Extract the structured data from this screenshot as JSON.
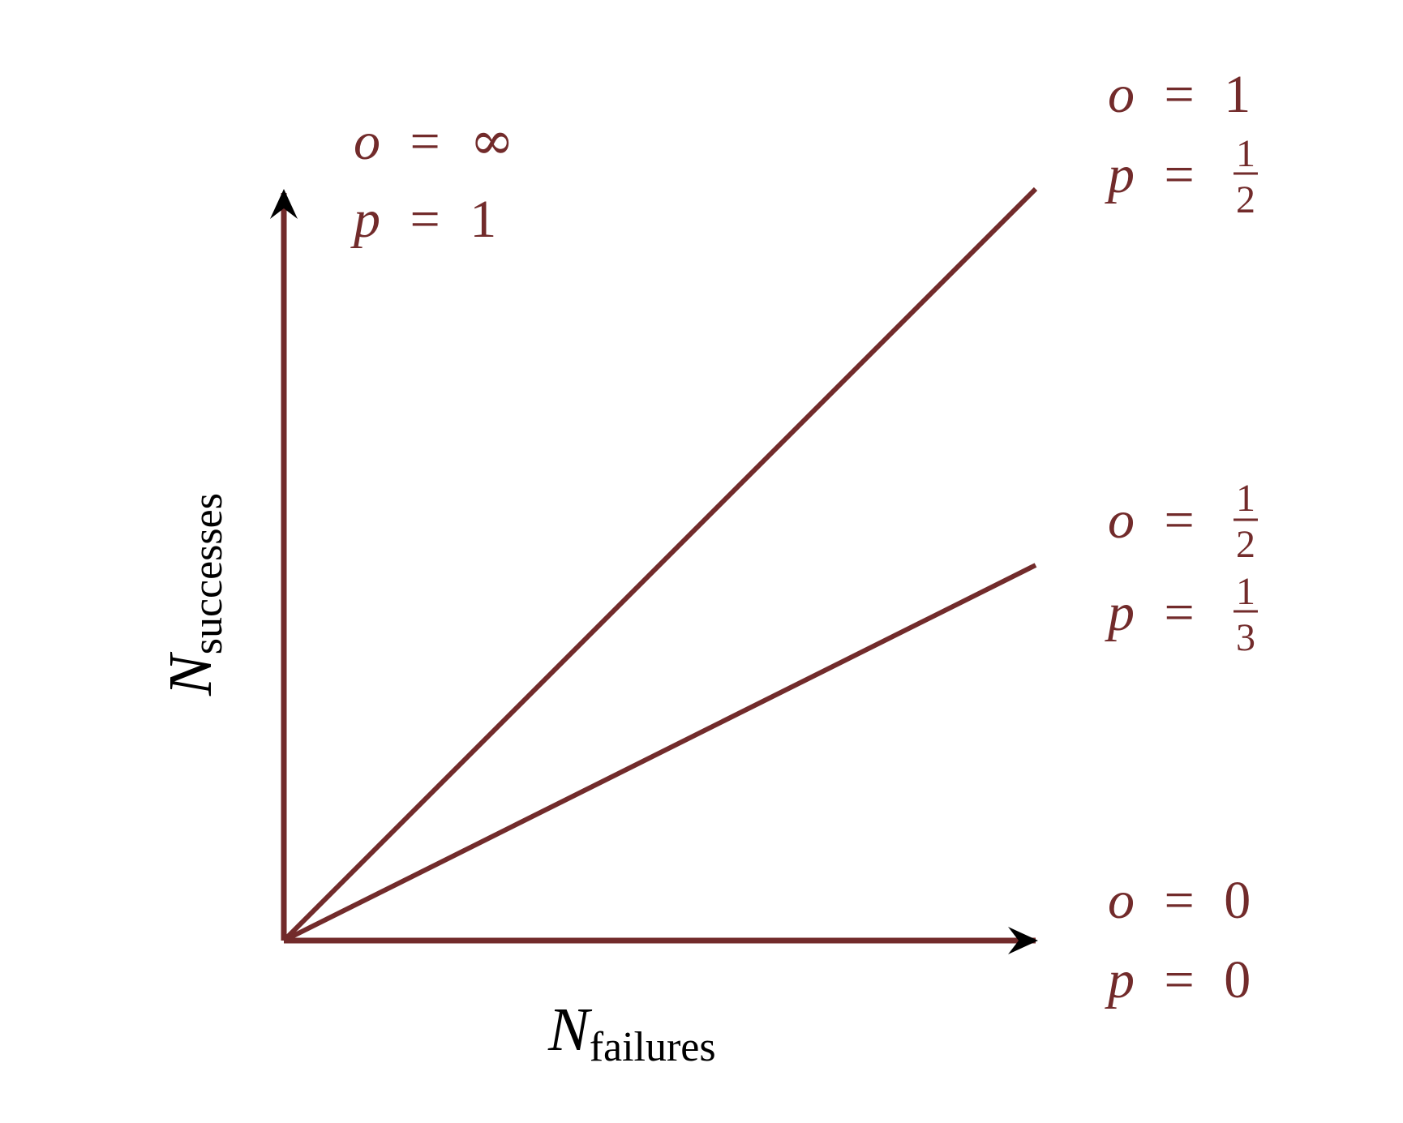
{
  "colors": {
    "line": "#722b2b",
    "label": "#722b2b",
    "axis_arrow": "#000000",
    "axis_label": "#000000",
    "background": "#ffffff"
  },
  "axes": {
    "x_label_main": "N",
    "x_label_sub": "failures",
    "y_label_main": "N",
    "y_label_sub": "successes"
  },
  "lines": [
    {
      "odds_var": "o",
      "eq": "=",
      "odds": "∞",
      "prob_var": "p",
      "prob": "1",
      "slope": "infinite"
    },
    {
      "odds_var": "o",
      "eq": "=",
      "odds": "1",
      "prob_var": "p",
      "prob_num": "1",
      "prob_den": "2",
      "slope": 1
    },
    {
      "odds_var": "o",
      "eq": "=",
      "odds_num": "1",
      "odds_den": "2",
      "prob_var": "p",
      "prob_num": "1",
      "prob_den": "3",
      "slope": 0.5
    },
    {
      "odds_var": "o",
      "eq": "=",
      "odds": "0",
      "prob_var": "p",
      "prob": "0",
      "slope": 0
    }
  ]
}
